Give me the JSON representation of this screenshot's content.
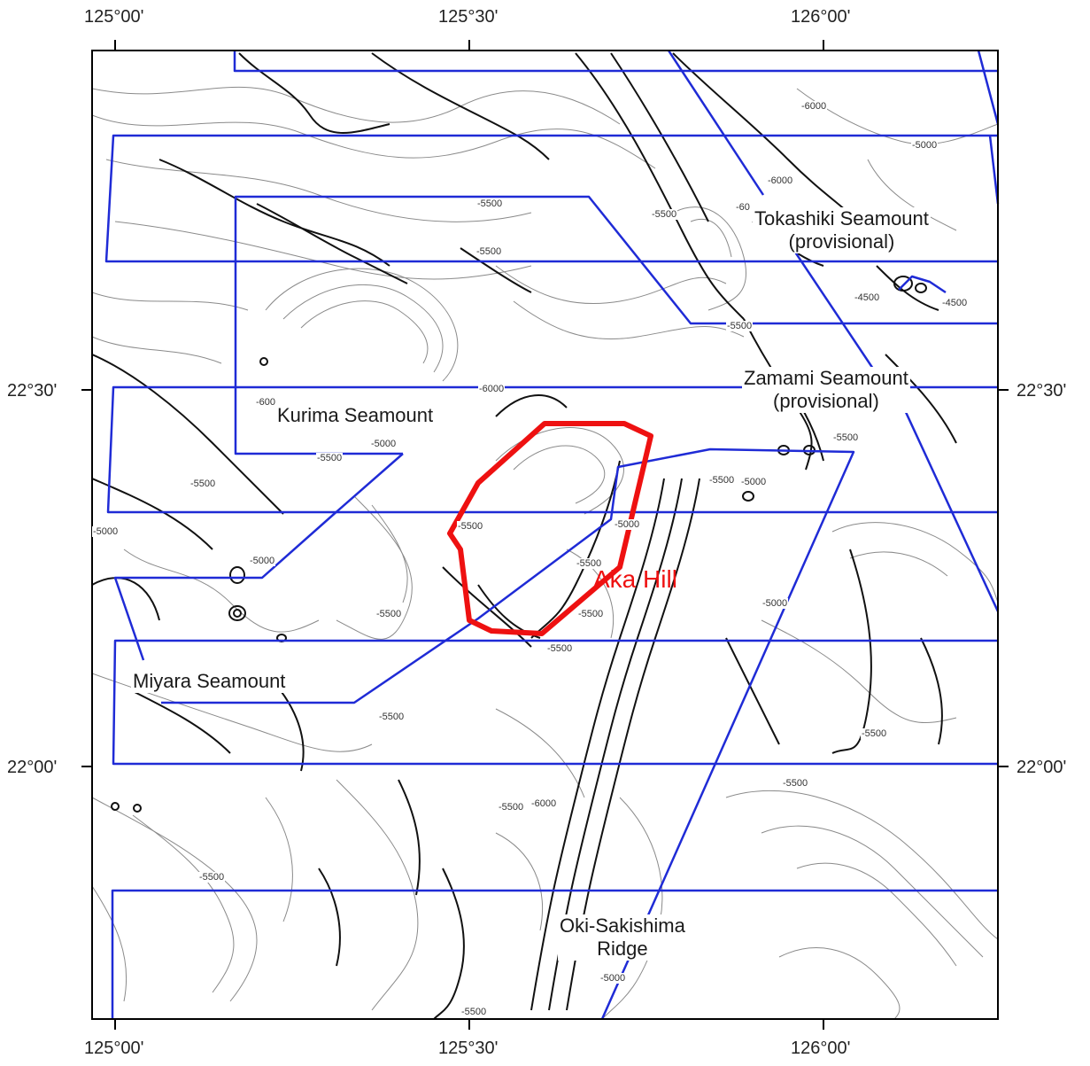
{
  "longitude_labels_top": [
    "125°00'",
    "125°30'",
    "126°00'"
  ],
  "longitude_labels_bottom": [
    "125°00'",
    "125°30'",
    "126°00'"
  ],
  "latitude_labels_left": [
    "22°30'",
    "22°00'"
  ],
  "latitude_labels_right": [
    "22°30'",
    "22°00'"
  ],
  "features": {
    "tokashiki_name": "Tokashiki Seamount",
    "tokashiki_note": "(provisional)",
    "zamami_name": "Zamami Seamount",
    "zamami_note": "(provisional)",
    "kurima": "Kurima Seamount",
    "miyara": "Miyara Seamount",
    "oki_line1": "Oki-Sakishima",
    "oki_line2": "Ridge",
    "aka_hill": "Aka Hill"
  },
  "depth_labels": [
    "-6000",
    "-5000",
    "-6000",
    "-60",
    "-5500",
    "-5500",
    "-5500",
    "-4500",
    "-5500",
    "-4500",
    "-600",
    "-6000",
    "-5000",
    "-5500",
    "-5500",
    "-5500",
    "-5500",
    "-5000",
    "-5000",
    "-5500",
    "-5000",
    "-5500",
    "-5500",
    "-5000",
    "-5500",
    "-5500",
    "-5500",
    "-5500",
    "-5500",
    "-6000",
    "-5500",
    "-5500",
    "-5000",
    "-5500",
    "-5000"
  ],
  "colors": {
    "track_lines": "#1f2bd6",
    "aka_hill_outline": "#ee1111",
    "contours_thin": "#8a8a8a",
    "contours_thick": "#111111"
  }
}
